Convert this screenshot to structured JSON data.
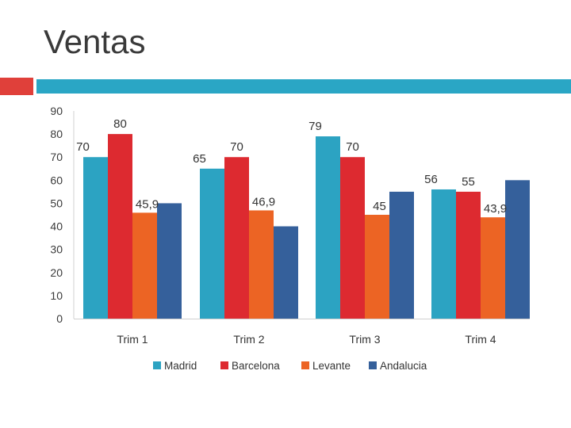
{
  "slide": {
    "title": "Ventas"
  },
  "chart_data": {
    "type": "bar",
    "title": "",
    "xlabel": "",
    "ylabel": "",
    "ylim": [
      0,
      90
    ],
    "yticks": [
      0,
      10,
      20,
      30,
      40,
      50,
      60,
      70,
      80,
      90
    ],
    "grid": false,
    "legend_position": "bottom",
    "categories": [
      "Trim 1",
      "Trim 2",
      "Trim 3",
      "Trim 4"
    ],
    "series": [
      {
        "name": "Madrid",
        "color": "#2ca3c2",
        "values": [
          70,
          65,
          79,
          56
        ],
        "labels": [
          "70",
          "65",
          "79",
          "56"
        ]
      },
      {
        "name": "Barcelona",
        "color": "#dd2a30",
        "values": [
          80,
          70,
          70,
          55
        ],
        "labels": [
          "80",
          "70",
          "70",
          "55"
        ]
      },
      {
        "name": "Levante",
        "color": "#ec6424",
        "values": [
          45.9,
          46.9,
          45,
          43.9
        ],
        "labels": [
          "45,9",
          "46,9",
          "45",
          "43,9"
        ]
      },
      {
        "name": "Andalucia",
        "color": "#35609b",
        "values": [
          50,
          40,
          55,
          60
        ],
        "labels": [
          "",
          "",
          "",
          ""
        ]
      }
    ]
  }
}
